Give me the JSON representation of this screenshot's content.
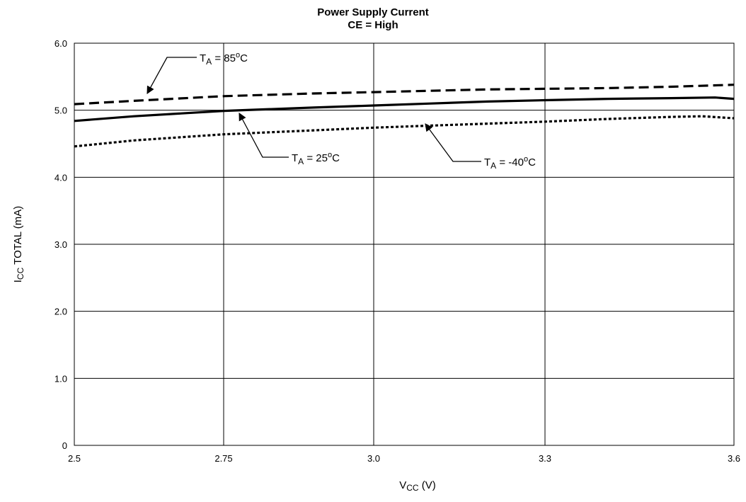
{
  "chart_data": {
    "type": "line",
    "title": "Power Supply Current",
    "subtitle": "CE = High",
    "xlabel": {
      "main": "V",
      "sub": "CC",
      "tail": " (V)"
    },
    "ylabel": {
      "main": "I",
      "sub": "CC",
      "tail": " TOTAL (mA)"
    },
    "x_ticks": [
      {
        "value": 2.5,
        "label": "2.5"
      },
      {
        "value": 2.75,
        "label": "2.75"
      },
      {
        "value": 3.0,
        "label": "3.0"
      },
      {
        "value": 3.3,
        "label": "3.3"
      },
      {
        "value": 3.6,
        "label": "3.6"
      }
    ],
    "y_ticks": [
      {
        "value": 0,
        "label": "0"
      },
      {
        "value": 1.0,
        "label": "1.0"
      },
      {
        "value": 2.0,
        "label": "2.0"
      },
      {
        "value": 3.0,
        "label": "3.0"
      },
      {
        "value": 4.0,
        "label": "4.0"
      },
      {
        "value": 5.0,
        "label": "5.0"
      },
      {
        "value": 6.0,
        "label": "6.0"
      }
    ],
    "xlim": [
      2.5,
      3.6
    ],
    "ylim": [
      0,
      6.0
    ],
    "grid": true,
    "series": [
      {
        "name": "TA = 85°C",
        "dash": "dashed",
        "points": [
          [
            2.5,
            5.09
          ],
          [
            2.6,
            5.14
          ],
          [
            2.75,
            5.21
          ],
          [
            2.9,
            5.25
          ],
          [
            3.0,
            5.27
          ],
          [
            3.1,
            5.29
          ],
          [
            3.2,
            5.31
          ],
          [
            3.3,
            5.32
          ],
          [
            3.4,
            5.33
          ],
          [
            3.5,
            5.35
          ],
          [
            3.6,
            5.38
          ]
        ]
      },
      {
        "name": "TA = 25°C",
        "dash": "solid",
        "points": [
          [
            2.5,
            4.84
          ],
          [
            2.6,
            4.91
          ],
          [
            2.75,
            4.99
          ],
          [
            2.9,
            5.04
          ],
          [
            3.0,
            5.07
          ],
          [
            3.1,
            5.1
          ],
          [
            3.2,
            5.13
          ],
          [
            3.3,
            5.15
          ],
          [
            3.4,
            5.17
          ],
          [
            3.5,
            5.18
          ],
          [
            3.57,
            5.19
          ],
          [
            3.6,
            5.17
          ]
        ]
      },
      {
        "name": "TA = -40°C",
        "dash": "dotted",
        "points": [
          [
            2.5,
            4.46
          ],
          [
            2.6,
            4.55
          ],
          [
            2.75,
            4.64
          ],
          [
            2.9,
            4.7
          ],
          [
            3.0,
            4.74
          ],
          [
            3.1,
            4.77
          ],
          [
            3.2,
            4.8
          ],
          [
            3.3,
            4.83
          ],
          [
            3.4,
            4.87
          ],
          [
            3.5,
            4.9
          ],
          [
            3.55,
            4.91
          ],
          [
            3.6,
            4.88
          ]
        ]
      }
    ],
    "annotations": [
      {
        "main": "T",
        "sub": "A",
        "tail": " = 85",
        "sup": "o",
        "end": "C",
        "series": 0
      },
      {
        "main": "T",
        "sub": "A",
        "tail": " = 25",
        "sup": "o",
        "end": "C",
        "series": 1
      },
      {
        "main": "T",
        "sub": "A",
        "tail": " = -40",
        "sup": "o",
        "end": "C",
        "series": 2
      }
    ]
  }
}
